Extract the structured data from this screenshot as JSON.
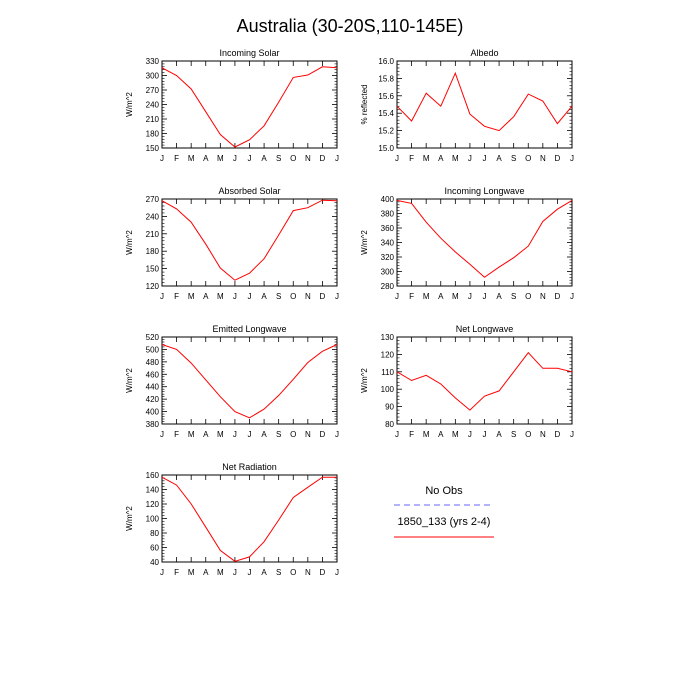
{
  "figure": {
    "title": "Australia (30-20S,110-145E)"
  },
  "months": [
    "J",
    "F",
    "M",
    "A",
    "M",
    "J",
    "J",
    "A",
    "S",
    "O",
    "N",
    "D",
    "J"
  ],
  "colors": {
    "model": "#ff0000",
    "obs": "#6666ff",
    "axes": "#000000"
  },
  "legend": {
    "obs_label": "No Obs",
    "model_label": "1850_133 (yrs 2-4)"
  },
  "chart_data": [
    {
      "type": "line",
      "title": "Incoming Solar",
      "ylabel": "W/m^2",
      "ylim": [
        150,
        330
      ],
      "yticks": [
        150,
        180,
        210,
        240,
        270,
        300,
        330
      ],
      "series": [
        {
          "name": "1850_133 (yrs 2-4)",
          "values": [
            316,
            300,
            272,
            225,
            178,
            152,
            167,
            196,
            245,
            296,
            301,
            318,
            316
          ]
        }
      ]
    },
    {
      "type": "line",
      "title": "Albedo",
      "ylabel": "% reflected",
      "ylim": [
        15.0,
        16.0
      ],
      "yticks": [
        15.0,
        15.2,
        15.4,
        15.6,
        15.8,
        16.0
      ],
      "ytick_decimals": 1,
      "series": [
        {
          "name": "1850_133 (yrs 2-4)",
          "values": [
            15.48,
            15.31,
            15.63,
            15.48,
            15.86,
            15.39,
            15.25,
            15.2,
            15.36,
            15.62,
            15.54,
            15.28,
            15.48
          ]
        }
      ]
    },
    {
      "type": "line",
      "title": "Absorbed Solar",
      "ylabel": "W/m^2",
      "ylim": [
        120,
        270
      ],
      "yticks": [
        120,
        150,
        180,
        210,
        240,
        270
      ],
      "series": [
        {
          "name": "1850_133 (yrs 2-4)",
          "values": [
            267,
            253,
            230,
            192,
            151,
            130,
            142,
            167,
            208,
            250,
            255,
            268,
            267
          ]
        }
      ]
    },
    {
      "type": "line",
      "title": "Incoming Longwave",
      "ylabel": "W/m^2",
      "ylim": [
        280,
        400
      ],
      "yticks": [
        280,
        300,
        320,
        340,
        360,
        380,
        400
      ],
      "series": [
        {
          "name": "1850_133 (yrs 2-4)",
          "values": [
            398,
            394,
            368,
            346,
            327,
            310,
            292,
            306,
            319,
            335,
            369,
            386,
            398
          ]
        }
      ]
    },
    {
      "type": "line",
      "title": "Emitted Longwave",
      "ylabel": "W/m^2",
      "ylim": [
        380,
        520
      ],
      "yticks": [
        380,
        400,
        420,
        440,
        460,
        480,
        500,
        520
      ],
      "series": [
        {
          "name": "1850_133 (yrs 2-4)",
          "values": [
            508,
            500,
            478,
            451,
            424,
            400,
            390,
            404,
            426,
            452,
            479,
            497,
            508
          ]
        }
      ]
    },
    {
      "type": "line",
      "title": "Net Longwave",
      "ylabel": "W/m^2",
      "ylim": [
        80,
        130
      ],
      "yticks": [
        80,
        90,
        100,
        110,
        120,
        130
      ],
      "series": [
        {
          "name": "1850_133 (yrs 2-4)",
          "values": [
            110,
            105,
            108,
            103,
            95,
            88,
            96,
            99,
            110,
            121,
            112,
            112,
            110
          ]
        }
      ]
    },
    {
      "type": "line",
      "title": "Net Radiation",
      "ylabel": "W/m^2",
      "ylim": [
        40,
        160
      ],
      "yticks": [
        40,
        60,
        80,
        100,
        120,
        140,
        160
      ],
      "series": [
        {
          "name": "1850_133 (yrs 2-4)",
          "values": [
            157,
            146,
            120,
            88,
            56,
            41,
            47,
            68,
            98,
            129,
            143,
            157,
            157
          ]
        }
      ]
    }
  ]
}
